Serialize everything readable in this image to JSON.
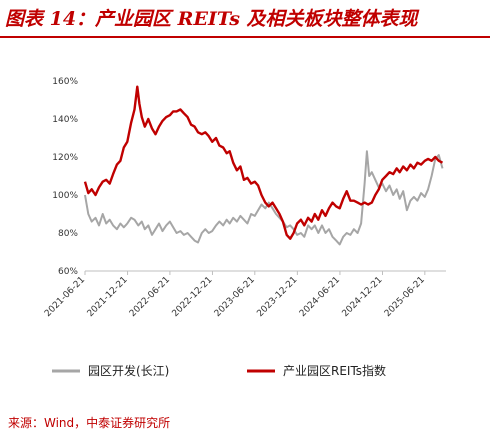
{
  "header": {
    "title": "图表 14：产业园区 REITs 及相关板块整体表现"
  },
  "footer": {
    "source": "来源：Wind，中泰证券研究所"
  },
  "chart_data": {
    "type": "line",
    "ylim": [
      60,
      160
    ],
    "y_ticks": [
      "60%",
      "80%",
      "100%",
      "120%",
      "140%",
      "160%"
    ],
    "y_tick_values": [
      60,
      80,
      100,
      120,
      140,
      160
    ],
    "x_ticks": [
      "2021-06-21",
      "2021-12-21",
      "2022-06-21",
      "2022-12-21",
      "2023-06-21",
      "2023-12-21",
      "2024-06-21",
      "2024-12-21",
      "2025-06-21"
    ],
    "grid": false,
    "legend_position": "bottom",
    "series": [
      {
        "name": "园区开发(长江)",
        "color": "#a6a6a6",
        "points": [
          [
            "2021-06-21",
            100
          ],
          [
            "2021-07-05",
            90
          ],
          [
            "2021-07-20",
            86
          ],
          [
            "2021-08-05",
            88
          ],
          [
            "2021-08-20",
            84
          ],
          [
            "2021-09-05",
            90
          ],
          [
            "2021-09-20",
            85
          ],
          [
            "2021-10-05",
            87
          ],
          [
            "2021-10-20",
            84
          ],
          [
            "2021-11-05",
            82
          ],
          [
            "2021-11-20",
            85
          ],
          [
            "2021-12-05",
            83
          ],
          [
            "2021-12-20",
            85
          ],
          [
            "2022-01-05",
            88
          ],
          [
            "2022-01-20",
            87
          ],
          [
            "2022-02-05",
            84
          ],
          [
            "2022-02-20",
            86
          ],
          [
            "2022-03-05",
            82
          ],
          [
            "2022-03-20",
            84
          ],
          [
            "2022-04-05",
            79
          ],
          [
            "2022-04-20",
            82
          ],
          [
            "2022-05-05",
            85
          ],
          [
            "2022-05-20",
            81
          ],
          [
            "2022-06-05",
            84
          ],
          [
            "2022-06-21",
            86
          ],
          [
            "2022-07-05",
            83
          ],
          [
            "2022-07-20",
            80
          ],
          [
            "2022-08-05",
            81
          ],
          [
            "2022-08-20",
            79
          ],
          [
            "2022-09-05",
            80
          ],
          [
            "2022-09-20",
            78
          ],
          [
            "2022-10-05",
            76
          ],
          [
            "2022-10-20",
            75
          ],
          [
            "2022-11-05",
            80
          ],
          [
            "2022-11-20",
            82
          ],
          [
            "2022-12-05",
            80
          ],
          [
            "2022-12-20",
            81
          ],
          [
            "2023-01-05",
            84
          ],
          [
            "2023-01-20",
            86
          ],
          [
            "2023-02-05",
            84
          ],
          [
            "2023-02-20",
            87
          ],
          [
            "2023-03-05",
            85
          ],
          [
            "2023-03-20",
            88
          ],
          [
            "2023-04-05",
            86
          ],
          [
            "2023-04-20",
            89
          ],
          [
            "2023-05-05",
            87
          ],
          [
            "2023-05-20",
            85
          ],
          [
            "2023-06-05",
            90
          ],
          [
            "2023-06-21",
            89
          ],
          [
            "2023-07-05",
            92
          ],
          [
            "2023-07-20",
            95
          ],
          [
            "2023-08-05",
            93
          ],
          [
            "2023-08-20",
            96
          ],
          [
            "2023-09-05",
            93
          ],
          [
            "2023-09-20",
            90
          ],
          [
            "2023-10-05",
            88
          ],
          [
            "2023-10-20",
            86
          ],
          [
            "2023-11-05",
            83
          ],
          [
            "2023-11-20",
            84
          ],
          [
            "2023-12-05",
            82
          ],
          [
            "2023-12-20",
            79
          ],
          [
            "2024-01-05",
            80
          ],
          [
            "2024-01-20",
            78
          ],
          [
            "2024-02-05",
            84
          ],
          [
            "2024-02-20",
            82
          ],
          [
            "2024-03-05",
            84
          ],
          [
            "2024-03-20",
            80
          ],
          [
            "2024-04-05",
            84
          ],
          [
            "2024-04-20",
            80
          ],
          [
            "2024-05-05",
            82
          ],
          [
            "2024-05-20",
            78
          ],
          [
            "2024-06-05",
            76
          ],
          [
            "2024-06-20",
            74
          ],
          [
            "2024-07-05",
            78
          ],
          [
            "2024-07-20",
            80
          ],
          [
            "2024-08-05",
            79
          ],
          [
            "2024-08-20",
            82
          ],
          [
            "2024-09-05",
            80
          ],
          [
            "2024-09-20",
            85
          ],
          [
            "2024-10-05",
            106
          ],
          [
            "2024-10-15",
            123
          ],
          [
            "2024-10-25",
            110
          ],
          [
            "2024-11-05",
            112
          ],
          [
            "2024-11-20",
            108
          ],
          [
            "2024-12-05",
            104
          ],
          [
            "2024-12-20",
            106
          ],
          [
            "2025-01-05",
            102
          ],
          [
            "2025-01-20",
            105
          ],
          [
            "2025-02-05",
            100
          ],
          [
            "2025-02-20",
            103
          ],
          [
            "2025-03-05",
            98
          ],
          [
            "2025-03-20",
            102
          ],
          [
            "2025-04-05",
            92
          ],
          [
            "2025-04-20",
            97
          ],
          [
            "2025-05-05",
            99
          ],
          [
            "2025-05-20",
            97
          ],
          [
            "2025-06-05",
            101
          ],
          [
            "2025-06-21",
            99
          ],
          [
            "2025-07-05",
            103
          ],
          [
            "2025-07-20",
            110
          ],
          [
            "2025-08-05",
            119
          ],
          [
            "2025-08-20",
            121
          ],
          [
            "2025-09-05",
            114
          ]
        ]
      },
      {
        "name": "产业园区REITs指数",
        "color": "#c00000",
        "points": [
          [
            "2021-06-21",
            107
          ],
          [
            "2021-07-05",
            101
          ],
          [
            "2021-07-20",
            103
          ],
          [
            "2021-08-05",
            100
          ],
          [
            "2021-08-20",
            104
          ],
          [
            "2021-09-05",
            107
          ],
          [
            "2021-09-20",
            108
          ],
          [
            "2021-10-05",
            106
          ],
          [
            "2021-10-20",
            111
          ],
          [
            "2021-11-05",
            116
          ],
          [
            "2021-11-20",
            118
          ],
          [
            "2021-12-05",
            125
          ],
          [
            "2021-12-20",
            128
          ],
          [
            "2022-01-05",
            138
          ],
          [
            "2022-01-20",
            145
          ],
          [
            "2022-02-01",
            157
          ],
          [
            "2022-02-10",
            148
          ],
          [
            "2022-02-20",
            141
          ],
          [
            "2022-03-05",
            136
          ],
          [
            "2022-03-20",
            140
          ],
          [
            "2022-04-05",
            135
          ],
          [
            "2022-04-20",
            132
          ],
          [
            "2022-05-05",
            136
          ],
          [
            "2022-05-20",
            139
          ],
          [
            "2022-06-05",
            141
          ],
          [
            "2022-06-21",
            142
          ],
          [
            "2022-07-05",
            144
          ],
          [
            "2022-07-20",
            144
          ],
          [
            "2022-08-05",
            145
          ],
          [
            "2022-08-20",
            143
          ],
          [
            "2022-09-05",
            141
          ],
          [
            "2022-09-20",
            137
          ],
          [
            "2022-10-05",
            136
          ],
          [
            "2022-10-20",
            133
          ],
          [
            "2022-11-05",
            132
          ],
          [
            "2022-11-20",
            133
          ],
          [
            "2022-12-05",
            131
          ],
          [
            "2022-12-20",
            128
          ],
          [
            "2023-01-05",
            130
          ],
          [
            "2023-01-20",
            126
          ],
          [
            "2023-02-05",
            125
          ],
          [
            "2023-02-20",
            122
          ],
          [
            "2023-03-05",
            123
          ],
          [
            "2023-03-20",
            117
          ],
          [
            "2023-04-05",
            113
          ],
          [
            "2023-04-20",
            115
          ],
          [
            "2023-05-05",
            108
          ],
          [
            "2023-05-20",
            109
          ],
          [
            "2023-06-05",
            106
          ],
          [
            "2023-06-21",
            107
          ],
          [
            "2023-07-05",
            105
          ],
          [
            "2023-07-20",
            100
          ],
          [
            "2023-08-05",
            96
          ],
          [
            "2023-08-20",
            94
          ],
          [
            "2023-09-05",
            96
          ],
          [
            "2023-09-20",
            93
          ],
          [
            "2023-10-05",
            90
          ],
          [
            "2023-10-20",
            86
          ],
          [
            "2023-11-05",
            79
          ],
          [
            "2023-11-20",
            77
          ],
          [
            "2023-12-05",
            80
          ],
          [
            "2023-12-20",
            85
          ],
          [
            "2024-01-05",
            87
          ],
          [
            "2024-01-20",
            84
          ],
          [
            "2024-02-05",
            88
          ],
          [
            "2024-02-20",
            86
          ],
          [
            "2024-03-05",
            90
          ],
          [
            "2024-03-20",
            87
          ],
          [
            "2024-04-05",
            92
          ],
          [
            "2024-04-20",
            89
          ],
          [
            "2024-05-05",
            93
          ],
          [
            "2024-05-20",
            96
          ],
          [
            "2024-06-05",
            94
          ],
          [
            "2024-06-20",
            93
          ],
          [
            "2024-07-05",
            98
          ],
          [
            "2024-07-20",
            102
          ],
          [
            "2024-08-05",
            97
          ],
          [
            "2024-08-20",
            97
          ],
          [
            "2024-09-05",
            96
          ],
          [
            "2024-09-20",
            95
          ],
          [
            "2024-10-05",
            96
          ],
          [
            "2024-10-20",
            95
          ],
          [
            "2024-11-05",
            96
          ],
          [
            "2024-11-20",
            100
          ],
          [
            "2024-12-05",
            103
          ],
          [
            "2024-12-20",
            108
          ],
          [
            "2025-01-05",
            110
          ],
          [
            "2025-01-20",
            112
          ],
          [
            "2025-02-05",
            111
          ],
          [
            "2025-02-20",
            114
          ],
          [
            "2025-03-05",
            112
          ],
          [
            "2025-03-20",
            115
          ],
          [
            "2025-04-05",
            113
          ],
          [
            "2025-04-20",
            116
          ],
          [
            "2025-05-05",
            114
          ],
          [
            "2025-05-20",
            117
          ],
          [
            "2025-06-05",
            116
          ],
          [
            "2025-06-21",
            118
          ],
          [
            "2025-07-05",
            119
          ],
          [
            "2025-07-20",
            118
          ],
          [
            "2025-08-05",
            120
          ],
          [
            "2025-08-20",
            118
          ],
          [
            "2025-09-05",
            117
          ]
        ]
      }
    ]
  }
}
